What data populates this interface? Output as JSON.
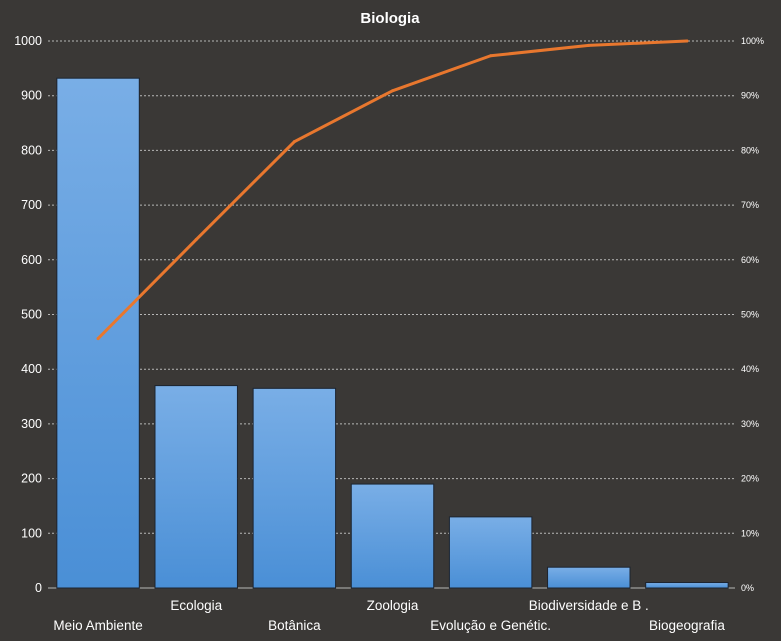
{
  "chart_data": {
    "type": "bar",
    "title": "Biologia",
    "categories": [
      "Meio Ambiente",
      "Ecologia",
      "Botânica",
      "Zoologia",
      "Evolução e Genétic.",
      "Biodiversidade e B .",
      "Biogeografia"
    ],
    "series": [
      {
        "type": "bar",
        "axis": "left",
        "values": [
          932,
          370,
          365,
          190,
          130,
          38,
          10
        ]
      },
      {
        "type": "line",
        "axis": "right",
        "values": [
          45.6,
          63.7,
          81.6,
          90.9,
          97.3,
          99.2,
          100
        ]
      }
    ],
    "y_left": {
      "min": 0,
      "max": 1000,
      "ticks": [
        0,
        100,
        200,
        300,
        400,
        500,
        600,
        700,
        800,
        900,
        1000
      ]
    },
    "y_right": {
      "min": 0,
      "max": 100,
      "ticks": [
        "0%",
        "10%",
        "20%",
        "30%",
        "40%",
        "50%",
        "60%",
        "70%",
        "80%",
        "90%",
        "100%"
      ]
    },
    "grid": true,
    "legend": "none",
    "colors": {
      "background": "#3a3836",
      "bar": "#4a8fd6",
      "bar_top": "#79aee6",
      "bar_edge": "#1c2430",
      "line": "#e8772e",
      "grid": "#b7b7b7",
      "text": "#ffffff"
    }
  }
}
